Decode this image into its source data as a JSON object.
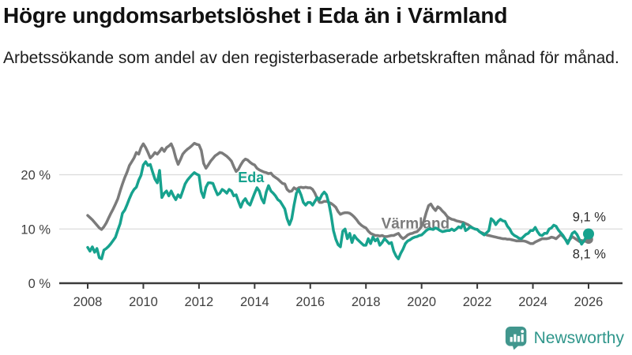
{
  "header": {
    "title": "Högre ungdomsarbetslöshet i Eda än i Värmland",
    "subtitle": "Arbetssökande som andel av den registerbaserade arbetskraften månad för månad."
  },
  "footer": {
    "brand": "Newsworthy",
    "brand_icon": "chart-speech-bubble-icon",
    "brand_color": "#2f968b",
    "icon_color": "#41968d"
  },
  "chart_data": {
    "type": "line",
    "frequency": "monthly",
    "x_start_year": 2008,
    "x_end_year": 2026,
    "x_tick_years": [
      2008,
      2010,
      2012,
      2014,
      2016,
      2018,
      2020,
      2022,
      2024,
      2026
    ],
    "x_tick_labels": [
      "2008",
      "2010",
      "2012",
      "2014",
      "2016",
      "2018",
      "2020",
      "2022",
      "2024",
      "2026"
    ],
    "y_ticks": [
      {
        "value": 0,
        "label": "0 %"
      },
      {
        "value": 10,
        "label": "10 %"
      },
      {
        "value": 20,
        "label": "20 %"
      }
    ],
    "ylim": [
      0,
      27.5
    ],
    "grid": true,
    "legend_position": "inline-labels",
    "series": [
      {
        "name": "Värmland",
        "color": "#7b7b7b",
        "end_label": "8,1 %",
        "end_label_dy": 24,
        "marker_r": 5.8,
        "label_pos": {
          "x_year": 2018.55,
          "value": 10.1
        },
        "values": [
          12.5,
          12.1,
          11.7,
          11.2,
          10.7,
          10.2,
          9.9,
          10.4,
          11.1,
          12,
          12.9,
          13.7,
          14.6,
          15.6,
          17,
          18.3,
          19.5,
          20.5,
          21.7,
          22.4,
          23.1,
          24.1,
          23.8,
          25,
          25.7,
          25,
          24.1,
          23.1,
          23.5,
          24.1,
          23.8,
          24.3,
          24.9,
          24.3,
          25,
          25.3,
          25.7,
          24.7,
          23.1,
          21.9,
          22.8,
          23.8,
          24.3,
          24.7,
          25,
          25.4,
          25.8,
          25.6,
          25.5,
          24.5,
          22.1,
          21.2,
          21.8,
          22.5,
          23,
          23.5,
          23.8,
          24.1,
          24,
          23.7,
          23.4,
          23,
          22.5,
          21.5,
          20.6,
          21,
          21.8,
          22.5,
          22.9,
          22.7,
          22.3,
          22,
          21.8,
          21.2,
          20.9,
          20.7,
          20.5,
          20.4,
          20.2,
          20.3,
          19.8,
          19.5,
          19.2,
          18.8,
          18.4,
          18.3,
          17.3,
          16.9,
          17,
          17.6,
          17.3,
          17.6,
          17.7,
          17.6,
          17.7,
          17.6,
          17.6,
          17.3,
          16.6,
          15.6,
          14.9,
          14.9,
          15.1,
          15.1,
          14.9,
          14.7,
          14.4,
          14,
          13.2,
          12.7,
          12.9,
          13,
          13,
          12.9,
          12.6,
          12.2,
          11.7,
          11.1,
          10.7,
          10.4,
          10.2,
          9.6,
          9.2,
          9,
          8.8,
          8.8,
          8.7,
          8.8,
          8.6,
          8.6,
          8.7,
          8.8,
          8.8,
          9,
          9.2,
          8.6,
          8.2,
          8.5,
          8.9,
          9.1,
          9.2,
          9.4,
          9.5,
          9.9,
          10.5,
          11.5,
          13,
          14.3,
          14.6,
          13.9,
          13.4,
          14.1,
          13.8,
          13.3,
          12.9,
          12.3,
          12,
          11.8,
          11.7,
          11.5,
          11.4,
          11.3,
          11.2,
          11,
          10.8,
          10.5,
          10.2,
          10,
          9.9,
          9.5,
          9.3,
          9.1,
          8.9,
          8.8,
          8.7,
          8.6,
          8.5,
          8.4,
          8.3,
          8.2,
          8.2,
          8.1,
          8.1,
          8,
          7.9,
          7.8,
          7.8,
          7.8,
          7.8,
          7.7,
          7.5,
          7.3,
          7.3,
          7.6,
          7.8,
          8,
          8.2,
          8.2,
          8.2,
          8.3,
          8.5,
          8.4,
          8.2,
          8.6,
          9,
          8.6,
          8.1,
          7.7,
          8.1,
          8.6,
          8.3,
          8,
          7.7,
          7.9,
          7.7,
          7.8,
          8.1
        ]
      },
      {
        "name": "Eda",
        "color": "#17a28e",
        "end_label": "9,1 %",
        "end_label_dy": -16,
        "marker_r": 7,
        "label_pos": {
          "x_year": 2013.4,
          "value": 18.6
        },
        "values": [
          6.6,
          5.9,
          6.7,
          5.7,
          6.4,
          4.7,
          4.5,
          6.1,
          6.4,
          6.8,
          7.3,
          7.9,
          8.5,
          9.8,
          11,
          12.9,
          13.5,
          14.5,
          15.6,
          16.6,
          17.3,
          17.7,
          19,
          19.9,
          21.8,
          22.4,
          21.7,
          21.9,
          20.5,
          19.2,
          18.5,
          20.8,
          15.8,
          16.6,
          17,
          16.1,
          17,
          16.1,
          15.4,
          16.3,
          15.8,
          17,
          18.3,
          19,
          19.5,
          20,
          20.4,
          20.1,
          19.9,
          16.9,
          15.8,
          17.7,
          18.5,
          18.5,
          18.4,
          17.3,
          16.3,
          16.6,
          17.3,
          17,
          16.6,
          17.3,
          17,
          16.1,
          16.3,
          15.1,
          14,
          15.1,
          15.6,
          14.8,
          14.4,
          15.5,
          16.6,
          17.6,
          17,
          15.6,
          14.8,
          16.8,
          18,
          17,
          16.6,
          16.1,
          15.4,
          15.1,
          14.4,
          13.7,
          11.9,
          10.8,
          11.9,
          14.4,
          16.6,
          17.3,
          16.3,
          14.9,
          14.4,
          14.9,
          14.9,
          14.4,
          15.1,
          15.8,
          15.4,
          16.3,
          16.8,
          16.3,
          14.7,
          12.5,
          9.7,
          8.1,
          7.1,
          6.7,
          9.6,
          10,
          8.2,
          9.2,
          7.5,
          8.8,
          8.2,
          7.8,
          7.4,
          7,
          7,
          8.2,
          7.3,
          8.5,
          7.8,
          8.2,
          7,
          7.5,
          8.2,
          7.8,
          7.3,
          7.5,
          5.9,
          5,
          4.5,
          5.5,
          6.3,
          7.3,
          7.8,
          8,
          8.3,
          8.5,
          8.6,
          8.8,
          8.9,
          9.3,
          9.7,
          10,
          10,
          9.9,
          10.2,
          10,
          9.7,
          9.5,
          9.6,
          9.7,
          9.7,
          10,
          9.7,
          10,
          10.4,
          10.2,
          11,
          9.7,
          10,
          10.4,
          10.2,
          10,
          9.9,
          9.5,
          9.2,
          8.9,
          9.3,
          9.7,
          11.9,
          11.5,
          10.8,
          11.4,
          11.8,
          11.5,
          11.4,
          10.5,
          10,
          9.2,
          8.8,
          8.6,
          8.3,
          8.2,
          8.6,
          9,
          9.2,
          9.7,
          9.7,
          10.3,
          9.5,
          8.9,
          8.8,
          9.2,
          9.2,
          10,
          10.2,
          10.7,
          10.5,
          9.8,
          9.3,
          8.8,
          8.1,
          7.3,
          8.2,
          9.2,
          9.5,
          9,
          8.1,
          7.2,
          7.8,
          8.5,
          9.1
        ]
      }
    ]
  }
}
